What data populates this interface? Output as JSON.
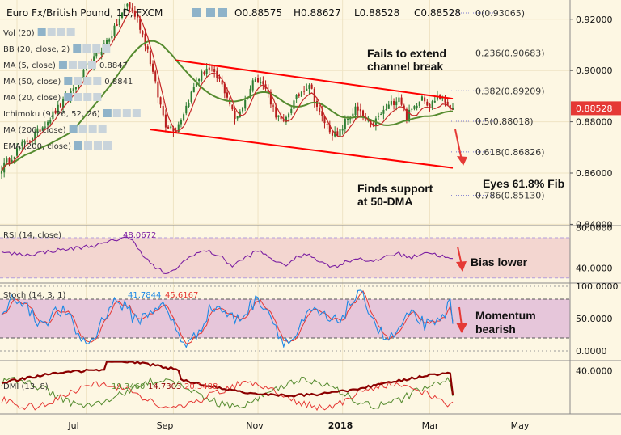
{
  "header": {
    "symbol": "Euro Fx/British Pound, 1D, FXCM",
    "open": "O0.88575",
    "high": "H0.88627",
    "low": "L0.88528",
    "close": "C0.88528"
  },
  "overlays": [
    {
      "label": "Vol (20)",
      "value": ""
    },
    {
      "label": "BB (20, close, 2)",
      "value": ""
    },
    {
      "label": "MA (5, close)",
      "value": "0.8847"
    },
    {
      "label": "MA (50, close)",
      "value": "0.8841"
    },
    {
      "label": "MA (20, close)",
      "value": ""
    },
    {
      "label": "Ichimoku (9, 26, 52, 26)",
      "value": ""
    },
    {
      "label": "MA (200, close)",
      "value": ""
    },
    {
      "label": "EMA (200, close)",
      "value": ""
    }
  ],
  "annotations": {
    "channel_break": [
      "Fails to extend",
      "channel break"
    ],
    "support": [
      "Finds support",
      "at 50-DMA"
    ],
    "fib_target": "Eyes 61.8% Fib",
    "rsi_note": "Bias lower",
    "stoch_note": [
      "Momentum",
      "bearish"
    ]
  },
  "price_label": "0.88528",
  "colors": {
    "background": "#fdf7e3",
    "candle_up": "#2e7d32",
    "candle_down": "#b71c1c",
    "ma5": "#c62828",
    "ma50": "#558b2f",
    "channel": "#ff0000",
    "arrow": "#e53935",
    "rsi": "#7b1fa2",
    "rsi_band": "#f3d6d0",
    "stoch_k": "#1e88e5",
    "stoch_d": "#e53935",
    "stoch_band": "#e6c6da",
    "dmi_plus": "#558b2f",
    "dmi_minus": "#e53935",
    "adx": "#8b0000",
    "price_tag": "#e53935"
  },
  "chart_data": [
    {
      "type": "candlestick",
      "title": "Euro Fx/British Pound, 1D, FXCM",
      "x_ticks": [
        "Jul",
        "Sep",
        "Nov",
        "2018",
        "Mar",
        "May"
      ],
      "y_ticks": [
        "0.92000",
        "0.90000",
        "0.88000",
        "0.86000",
        "0.84000"
      ],
      "ylim": [
        0.8395,
        0.9275
      ],
      "last_price": 0.88528,
      "series": [
        {
          "name": "EURGBP",
          "waypoints": [
            [
              0,
              0.862
            ],
            [
              7,
              0.87
            ],
            [
              14,
              0.876
            ],
            [
              20,
              0.883
            ],
            [
              26,
              0.89
            ],
            [
              32,
              0.899
            ],
            [
              38,
              0.907
            ],
            [
              44,
              0.916
            ],
            [
              49,
              0.926
            ],
            [
              53,
              0.92
            ],
            [
              57,
              0.908
            ],
            [
              61,
              0.89
            ],
            [
              64,
              0.879
            ],
            [
              68,
              0.877
            ],
            [
              72,
              0.886
            ],
            [
              76,
              0.896
            ],
            [
              80,
              0.901
            ],
            [
              85,
              0.896
            ],
            [
              88,
              0.89
            ],
            [
              91,
              0.881
            ],
            [
              95,
              0.888
            ],
            [
              99,
              0.898
            ],
            [
              103,
              0.893
            ],
            [
              107,
              0.883
            ],
            [
              110,
              0.879
            ],
            [
              113,
              0.886
            ],
            [
              117,
              0.892
            ],
            [
              120,
              0.895
            ],
            [
              124,
              0.883
            ],
            [
              128,
              0.877
            ],
            [
              131,
              0.874
            ],
            [
              134,
              0.88
            ],
            [
              138,
              0.885
            ],
            [
              141,
              0.882
            ],
            [
              144,
              0.878
            ],
            [
              148,
              0.883
            ],
            [
              152,
              0.887
            ],
            [
              155,
              0.89
            ],
            [
              158,
              0.882
            ],
            [
              161,
              0.886
            ],
            [
              164,
              0.8905
            ],
            [
              167,
              0.886
            ],
            [
              170,
              0.89
            ],
            [
              173,
              0.888
            ],
            [
              176,
              0.8853
            ]
          ]
        },
        {
          "name": "MA (5, close)",
          "last": 0.8847
        },
        {
          "name": "MA (50, close)",
          "last": 0.8841
        }
      ],
      "fibonacci": [
        {
          "label": "0(0.93065)",
          "value": 0.93065
        },
        {
          "label": "0.236(0.90683)",
          "value": 0.90683
        },
        {
          "label": "0.382(0.89209)",
          "value": 0.89209
        },
        {
          "label": "0.5(0.88018)",
          "value": 0.88018
        },
        {
          "label": "0.618(0.86826)",
          "value": 0.86826
        },
        {
          "label": "0.786(0.85130)",
          "value": 0.8513
        }
      ],
      "channel": {
        "upper": [
          [
            68,
            0.904
          ],
          [
            176,
            0.889
          ]
        ],
        "lower": [
          [
            58,
            0.877
          ],
          [
            176,
            0.862
          ]
        ]
      }
    },
    {
      "type": "line",
      "title": "RSI (14, close)",
      "value_label": "48.0672",
      "y_ticks": [
        "80.0000",
        "40.0000"
      ],
      "ylim": [
        25,
        82
      ],
      "band": [
        30,
        70
      ],
      "series": [
        {
          "name": "RSI",
          "waypoints": [
            [
              0,
              55
            ],
            [
              10,
              53
            ],
            [
              20,
              57
            ],
            [
              30,
              60
            ],
            [
              40,
              64
            ],
            [
              48,
              71
            ],
            [
              52,
              65
            ],
            [
              56,
              50
            ],
            [
              60,
              40
            ],
            [
              65,
              33
            ],
            [
              70,
              44
            ],
            [
              75,
              54
            ],
            [
              80,
              57
            ],
            [
              85,
              52
            ],
            [
              90,
              42
            ],
            [
              95,
              50
            ],
            [
              100,
              57
            ],
            [
              105,
              50
            ],
            [
              110,
              42
            ],
            [
              115,
              50
            ],
            [
              120,
              54
            ],
            [
              125,
              45
            ],
            [
              130,
              41
            ],
            [
              135,
              47
            ],
            [
              140,
              50
            ],
            [
              145,
              45
            ],
            [
              150,
              52
            ],
            [
              155,
              54
            ],
            [
              160,
              50
            ],
            [
              165,
              56
            ],
            [
              170,
              53
            ],
            [
              176,
              48
            ]
          ]
        }
      ]
    },
    {
      "type": "line",
      "title": "Stoch (14, 3, 1)",
      "value_labels": [
        "41.7844",
        "45.6167"
      ],
      "y_ticks": [
        "100.0000",
        "50.0000",
        "0.0000"
      ],
      "ylim": [
        0,
        100
      ],
      "band": [
        20,
        80
      ],
      "series": [
        {
          "name": "%K",
          "last": 41.7844
        },
        {
          "name": "%D",
          "last": 45.6167
        }
      ]
    },
    {
      "type": "line",
      "title": "DMI (13, 8)",
      "value_labels": [
        "19.3460",
        "14.7303",
        "20.3488"
      ],
      "y_ticks": [
        "40.0000"
      ],
      "ylim": [
        5,
        48
      ],
      "series": [
        {
          "name": "+DI",
          "last": 19.346
        },
        {
          "name": "-DI",
          "last": 14.7303
        },
        {
          "name": "ADX",
          "last": 20.3488
        }
      ]
    }
  ]
}
